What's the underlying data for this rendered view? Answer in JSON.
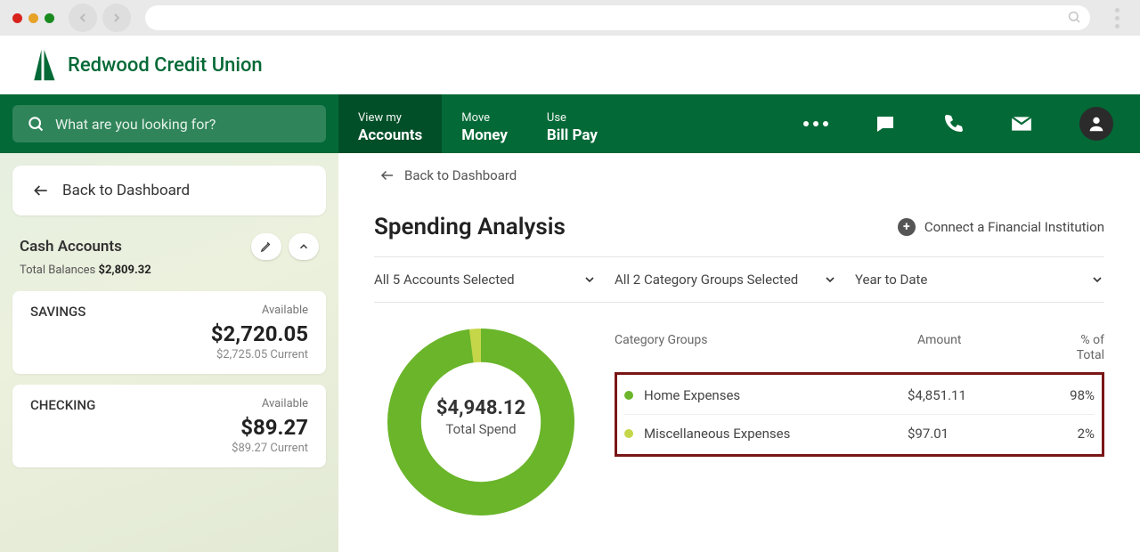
{
  "brand": {
    "name": "Redwood Credit Union",
    "color": "#036936"
  },
  "search": {
    "placeholder": "What are you looking for?"
  },
  "nav": {
    "items": [
      {
        "small": "View my",
        "big": "Accounts",
        "active": true
      },
      {
        "small": "Move",
        "big": "Money",
        "active": false
      },
      {
        "small": "Use",
        "big": "Bill Pay",
        "active": false
      }
    ]
  },
  "sidebar": {
    "back_label": "Back to Dashboard",
    "section_title": "Cash Accounts",
    "balances_label": "Total Balances",
    "balances_value": "$2,809.32",
    "accounts": [
      {
        "name": "SAVINGS",
        "available_label": "Available",
        "amount": "$2,720.05",
        "sub": "$2,725.05 Current"
      },
      {
        "name": "CHECKING",
        "available_label": "Available",
        "amount": "$89.27",
        "sub": "$89.27 Current"
      }
    ]
  },
  "main": {
    "crumb": "Back to Dashboard",
    "title": "Spending Analysis",
    "connect_label": "Connect a Financial Institution",
    "filters": {
      "accounts": "All 5 Accounts Selected",
      "categories": "All 2 Category Groups Selected",
      "period": "Year to Date"
    },
    "donut": {
      "type": "donut",
      "total_label": "Total Spend",
      "total_value": "$4,948.12",
      "slices": [
        {
          "label": "Home Expenses",
          "value": 4851.11,
          "pct": 98,
          "color": "#6ab52a"
        },
        {
          "label": "Miscellaneous Expenses",
          "value": 97.01,
          "pct": 2,
          "color": "#c5d648"
        }
      ],
      "inner_radius_pct": 64,
      "background": "#ffffff"
    },
    "table": {
      "headers": {
        "cat": "Category Groups",
        "amount": "Amount",
        "pct1": "% of",
        "pct2": "Total"
      },
      "rows": [
        {
          "dot": "#6ab52a",
          "label": "Home Expenses",
          "amount": "$4,851.11",
          "pct": "98%"
        },
        {
          "dot": "#c5d648",
          "label": "Miscellaneous Expenses",
          "amount": "$97.01",
          "pct": "2%"
        }
      ],
      "highlight_border": "#7a1616"
    }
  }
}
